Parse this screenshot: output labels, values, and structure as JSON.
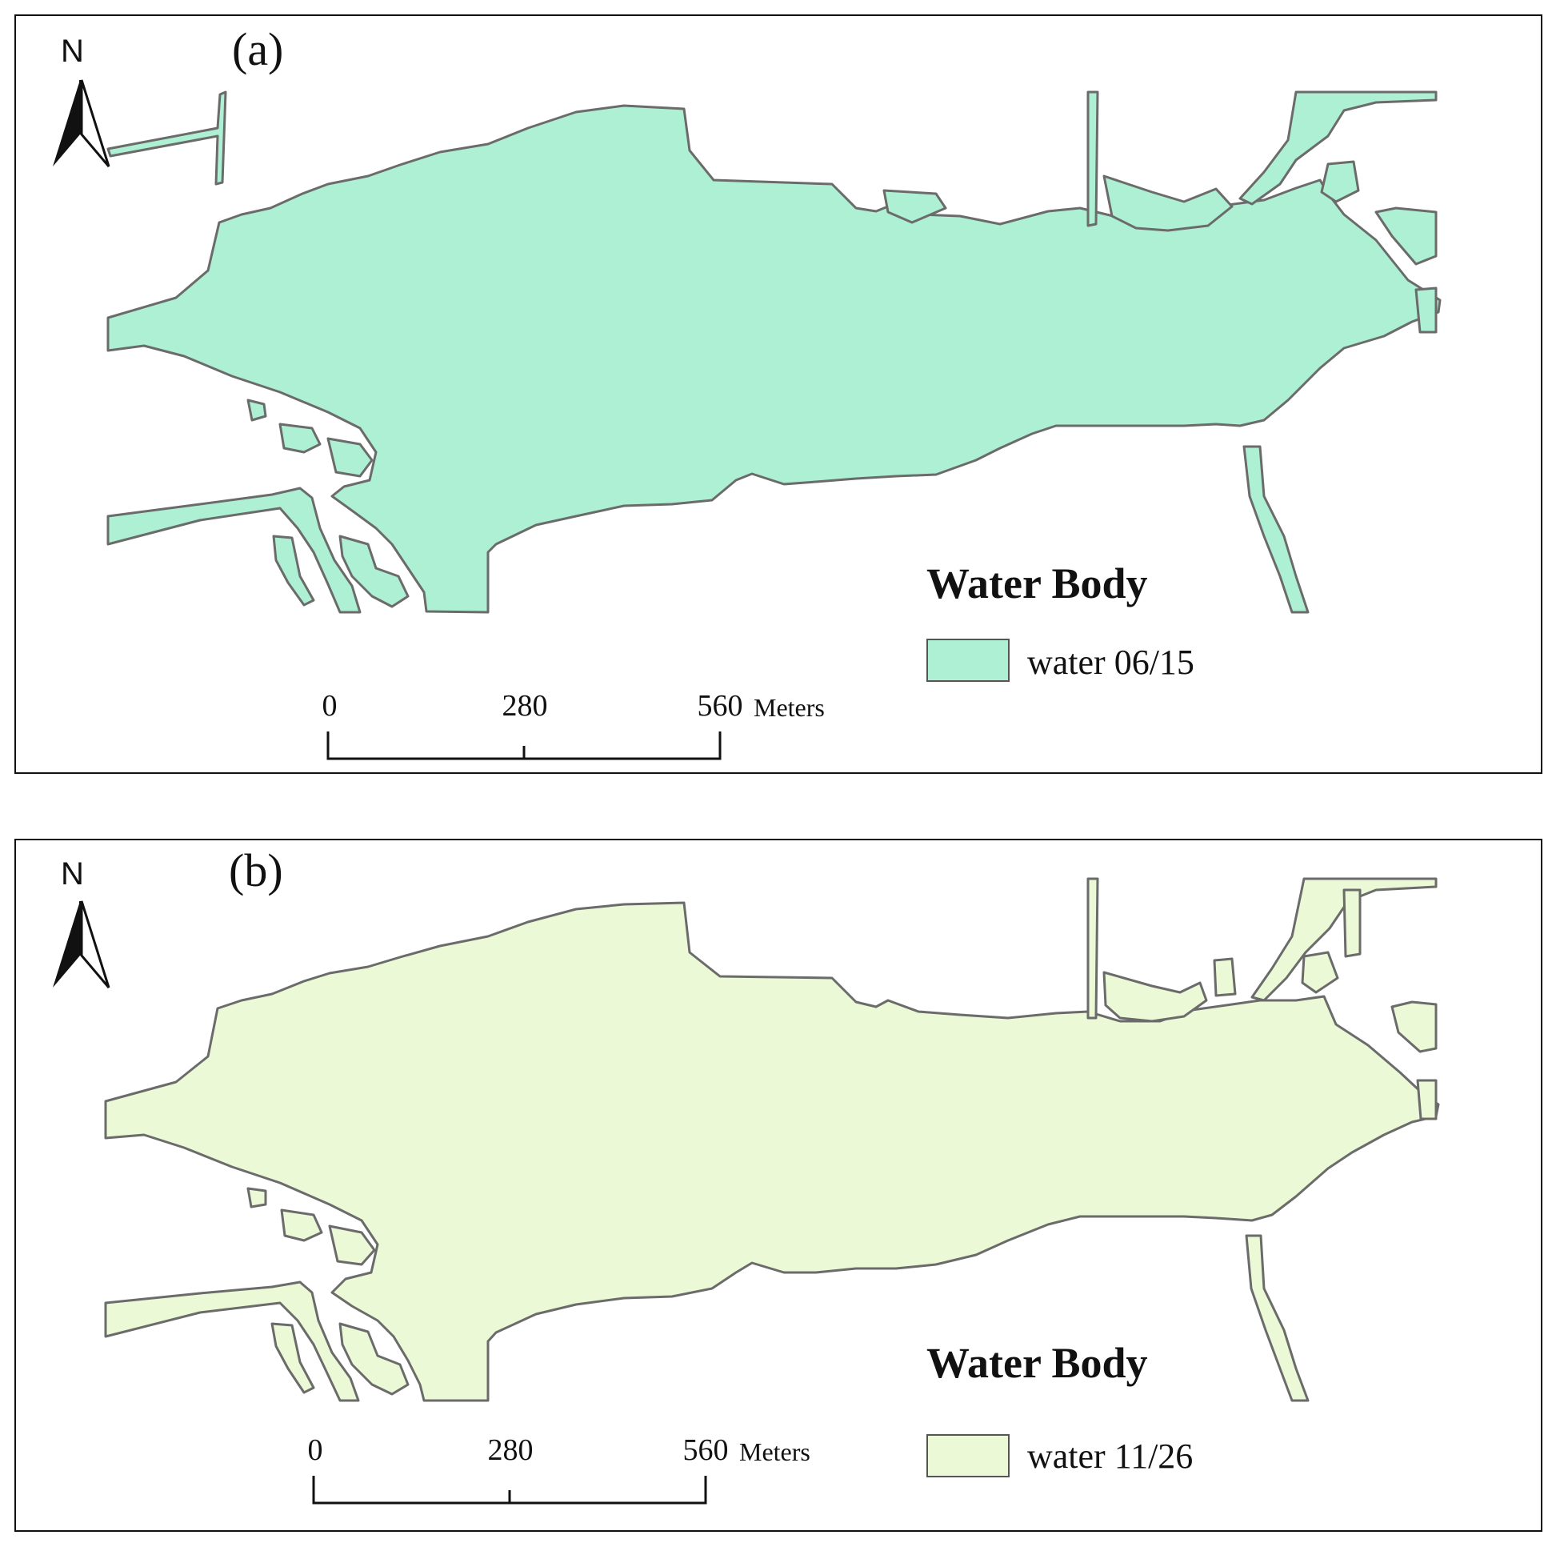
{
  "panels": [
    {
      "label": "(a)",
      "north": "N",
      "legend": {
        "title": "Water Body",
        "item_label": "water 06/15",
        "fill": "#aef0d4"
      },
      "scale": {
        "ticks": [
          "0",
          "280",
          "560"
        ],
        "units": "Meters"
      }
    },
    {
      "label": "(b)",
      "north": "N",
      "legend": {
        "title": "Water Body",
        "item_label": "water 11/26",
        "fill": "#ebf9d6"
      },
      "scale": {
        "ticks": [
          "0",
          "280",
          "560"
        ],
        "units": "Meters"
      }
    }
  ],
  "colors": {
    "outline": "#6b6b6b",
    "frame": "#111111",
    "arrow": "#111111"
  }
}
